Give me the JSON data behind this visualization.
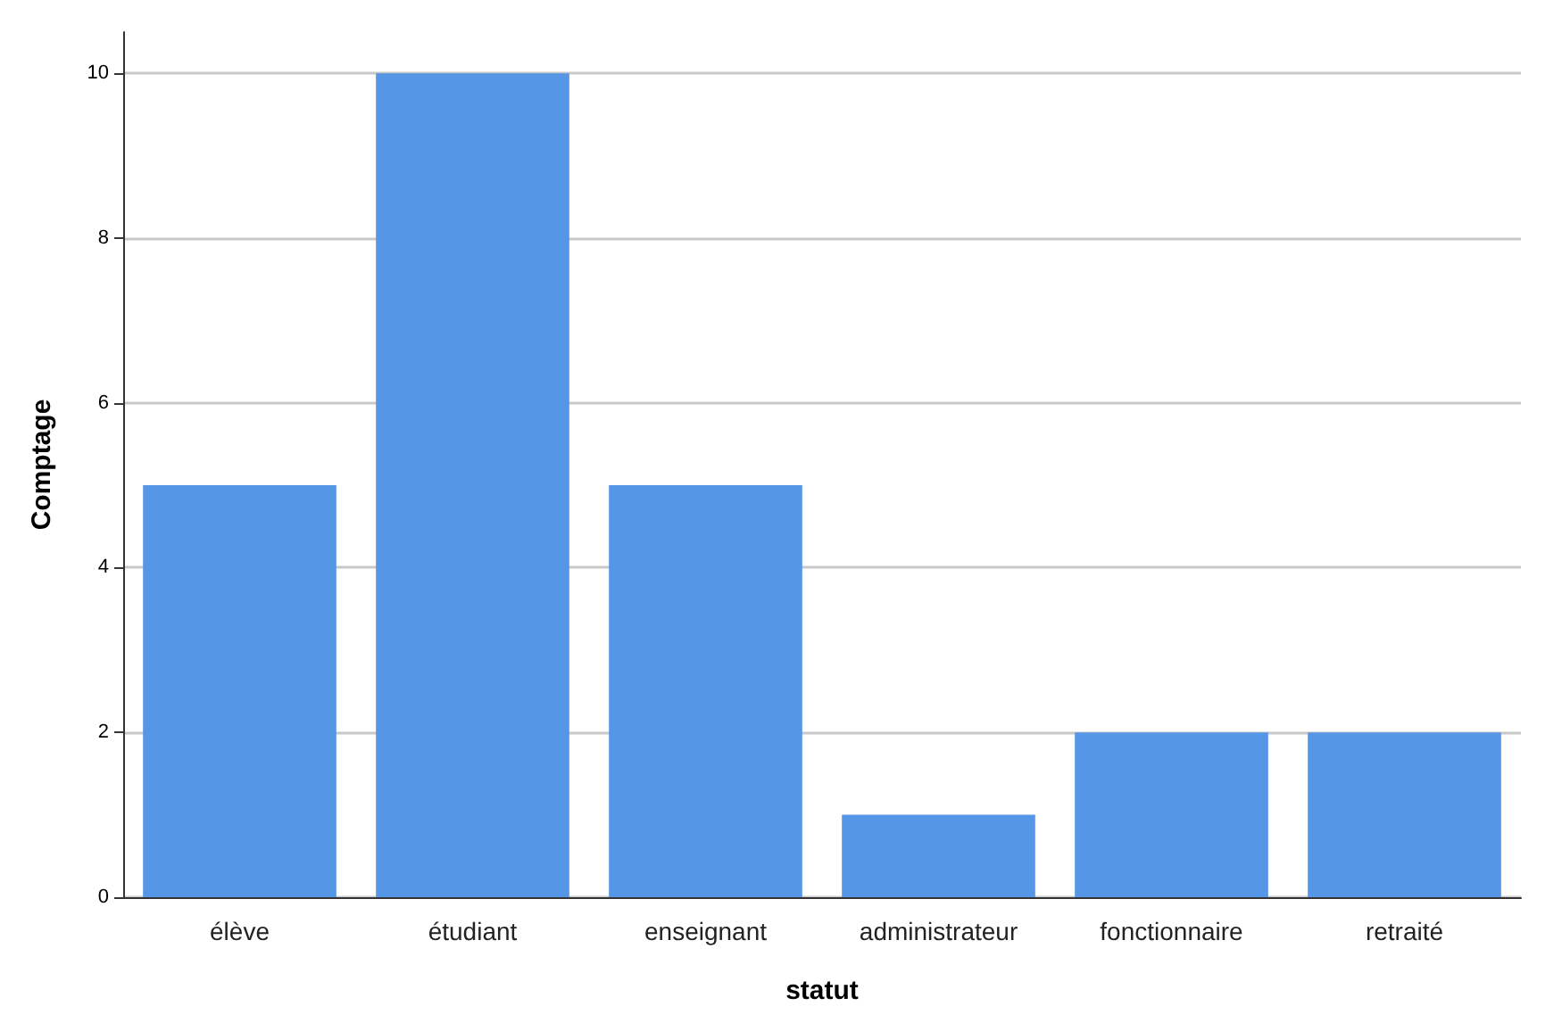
{
  "chart_data": {
    "type": "bar",
    "xlabel": "statut",
    "ylabel": "Comptage",
    "categories": [
      "élève",
      "étudiant",
      "enseignant",
      "administrateur",
      "fonctionnaire",
      "retraité"
    ],
    "values": [
      5,
      10,
      5,
      1,
      2,
      2
    ],
    "color": "#5596e6",
    "ylim": [
      0,
      10.5
    ],
    "yticks": [
      0,
      2,
      4,
      6,
      8,
      10
    ],
    "grid": "y"
  }
}
